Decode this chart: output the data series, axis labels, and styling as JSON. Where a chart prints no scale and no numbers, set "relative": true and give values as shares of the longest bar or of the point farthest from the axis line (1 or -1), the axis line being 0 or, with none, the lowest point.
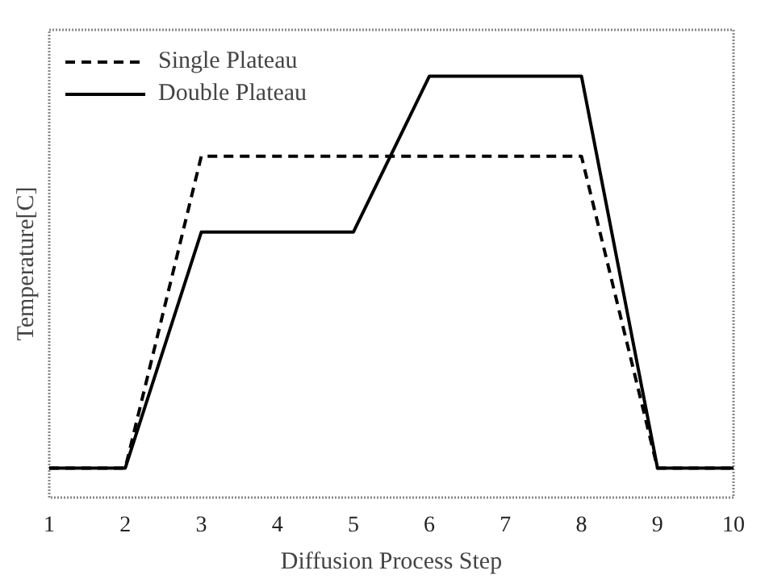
{
  "chart_data": {
    "type": "line",
    "xlabel": "Diffusion Process Step",
    "ylabel": "Temperature[C]",
    "x": [
      1,
      2,
      3,
      4,
      5,
      6,
      7,
      8,
      9,
      10
    ],
    "relative": true,
    "xlim": [
      1,
      10
    ],
    "xticks": [
      1,
      2,
      3,
      4,
      5,
      6,
      7,
      8,
      9,
      10
    ],
    "grid": false,
    "legend": "top left",
    "marker": "none",
    "series": [
      {
        "name": "Single Plateau",
        "color": "#000000",
        "line_style": "dashed",
        "values": [
          0.07,
          0.07,
          0.81,
          0.81,
          0.81,
          0.81,
          0.81,
          0.81,
          0.07,
          0.07
        ]
      },
      {
        "name": "Double Plateau",
        "color": "#000000",
        "line_style": "solid",
        "values": [
          0.07,
          0.07,
          0.63,
          0.63,
          0.63,
          1.0,
          1.0,
          1.0,
          0.07,
          0.07
        ]
      }
    ]
  }
}
